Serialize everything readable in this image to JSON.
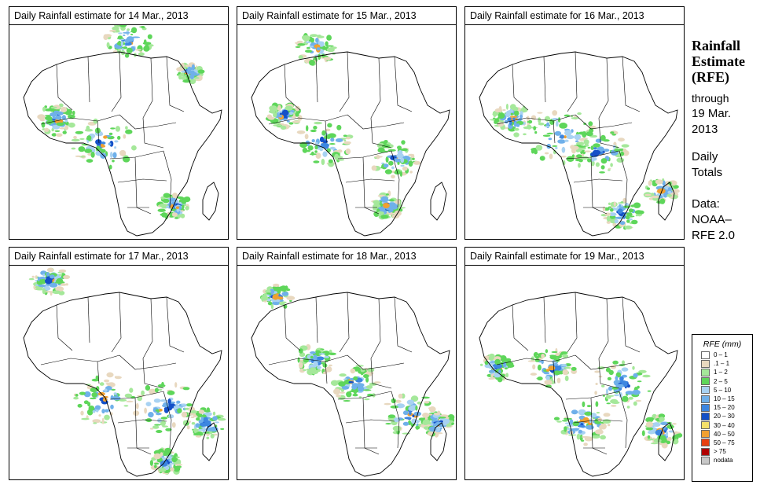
{
  "panels": [
    {
      "title": "Daily Rainfall estimate for  14 Mar., 2013"
    },
    {
      "title": "Daily Rainfall estimate for  15 Mar., 2013"
    },
    {
      "title": "Daily Rainfall estimate for  16 Mar., 2013"
    },
    {
      "title": "Daily Rainfall estimate for  17 Mar., 2013"
    },
    {
      "title": "Daily Rainfall estimate for  18 Mar., 2013"
    },
    {
      "title": "Daily Rainfall estimate for  19 Mar., 2013"
    }
  ],
  "sidebar": {
    "title_line1": "Rainfall",
    "title_line2": "Estimate",
    "title_line3": "(RFE)",
    "through_line1": "through",
    "through_line2": "19 Mar.",
    "through_line3": "2013",
    "daily_line1": "Daily",
    "daily_line2": "Totals",
    "data_line1": "Data:",
    "data_line2": "NOAA–",
    "data_line3": "RFE 2.0"
  },
  "legend": {
    "title": "RFE (mm)",
    "items": [
      {
        "label": "0 – 1",
        "color": "#ffffff"
      },
      {
        "label": ".1 – 1",
        "color": "#e8d8bf"
      },
      {
        "label": "1 – 2",
        "color": "#a5e89a"
      },
      {
        "label": "2 – 5",
        "color": "#5ed65a"
      },
      {
        "label": "5 – 10",
        "color": "#a8d2f2"
      },
      {
        "label": "10 – 15",
        "color": "#6fb0ea"
      },
      {
        "label": "15 – 20",
        "color": "#3d86e0"
      },
      {
        "label": "20 – 30",
        "color": "#1450c8"
      },
      {
        "label": "30 – 40",
        "color": "#f5e06a"
      },
      {
        "label": "40 – 50",
        "color": "#f0a030"
      },
      {
        "label": "50 – 75",
        "color": "#e84010"
      },
      {
        "label": "> 75",
        "color": "#b00000"
      },
      {
        "label": "nodata",
        "color": "#c8c8c8"
      }
    ]
  }
}
